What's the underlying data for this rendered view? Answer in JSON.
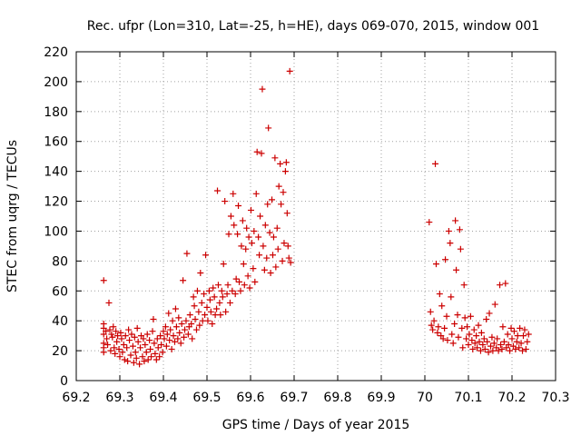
{
  "chart_data": {
    "type": "scatter",
    "title": "Rec. ufpr (Lon=310, Lat=-25, h=HE), days 069-070, 2015, window 001",
    "xlabel": "GPS time / Days of year 2015",
    "ylabel": "STEC from uqrg / TECUs",
    "xlim": [
      69.2,
      70.3
    ],
    "ylim": [
      0,
      220
    ],
    "xticks": [
      "69.2",
      "69.3",
      "69.4",
      "69.5",
      "69.6",
      "69.7",
      "69.8",
      "69.9",
      "70",
      "70.1",
      "70.2",
      "70.3"
    ],
    "yticks": [
      "0",
      "20",
      "40",
      "60",
      "80",
      "100",
      "120",
      "140",
      "160",
      "180",
      "200",
      "220"
    ],
    "grid": true,
    "marker": "plus",
    "color": "#cc0000",
    "series": [
      {
        "points": [
          [
            69.263,
            67
          ],
          [
            69.263,
            38
          ],
          [
            69.263,
            35
          ],
          [
            69.263,
            31
          ],
          [
            69.263,
            25
          ],
          [
            69.263,
            22
          ],
          [
            69.263,
            19
          ],
          [
            69.268,
            33
          ],
          [
            69.27,
            28
          ],
          [
            69.272,
            24
          ],
          [
            69.275,
            52
          ],
          [
            69.277,
            34
          ],
          [
            69.279,
            20
          ],
          [
            69.281,
            31
          ],
          [
            69.283,
            29
          ],
          [
            69.285,
            36
          ],
          [
            69.287,
            22
          ],
          [
            69.289,
            18
          ],
          [
            69.291,
            33
          ],
          [
            69.293,
            26
          ],
          [
            69.295,
            30
          ],
          [
            69.298,
            21
          ],
          [
            69.3,
            16
          ],
          [
            69.302,
            32
          ],
          [
            69.304,
            28
          ],
          [
            69.306,
            19
          ],
          [
            69.309,
            24
          ],
          [
            69.311,
            14
          ],
          [
            69.313,
            30
          ],
          [
            69.316,
            22
          ],
          [
            69.318,
            13
          ],
          [
            69.32,
            34
          ],
          [
            69.322,
            27
          ],
          [
            69.325,
            17
          ],
          [
            69.327,
            31
          ],
          [
            69.33,
            23
          ],
          [
            69.332,
            12
          ],
          [
            69.334,
            29
          ],
          [
            69.336,
            19
          ],
          [
            69.338,
            15
          ],
          [
            69.34,
            35
          ],
          [
            69.342,
            26
          ],
          [
            69.345,
            11
          ],
          [
            69.347,
            22
          ],
          [
            69.349,
            30
          ],
          [
            69.352,
            16
          ],
          [
            69.354,
            28
          ],
          [
            69.356,
            13
          ],
          [
            69.358,
            24
          ],
          [
            69.361,
            19
          ],
          [
            69.363,
            31
          ],
          [
            69.365,
            14
          ],
          [
            69.368,
            27
          ],
          [
            69.37,
            21
          ],
          [
            69.372,
            16
          ],
          [
            69.375,
            33
          ],
          [
            69.377,
            41
          ],
          [
            69.379,
            25
          ],
          [
            69.381,
            18
          ],
          [
            69.384,
            14
          ],
          [
            69.386,
            28
          ],
          [
            69.388,
            22
          ],
          [
            69.391,
            16
          ],
          [
            69.393,
            30
          ],
          [
            69.395,
            24
          ],
          [
            69.398,
            19
          ],
          [
            69.4,
            33
          ],
          [
            69.402,
            28
          ],
          [
            69.405,
            36
          ],
          [
            69.407,
            23
          ],
          [
            69.409,
            31
          ],
          [
            69.412,
            45
          ],
          [
            69.414,
            27
          ],
          [
            69.416,
            34
          ],
          [
            69.419,
            21
          ],
          [
            69.421,
            40
          ],
          [
            69.423,
            30
          ],
          [
            69.426,
            26
          ],
          [
            69.428,
            48
          ],
          [
            69.43,
            36
          ],
          [
            69.433,
            28
          ],
          [
            69.435,
            42
          ],
          [
            69.437,
            32
          ],
          [
            69.44,
            25
          ],
          [
            69.442,
            38
          ],
          [
            69.445,
            67
          ],
          [
            69.447,
            29
          ],
          [
            69.449,
            34
          ],
          [
            69.452,
            40
          ],
          [
            69.454,
            85
          ],
          [
            69.457,
            31
          ],
          [
            69.459,
            36
          ],
          [
            69.461,
            44
          ],
          [
            69.464,
            38
          ],
          [
            69.466,
            28
          ],
          [
            69.469,
            56
          ],
          [
            69.471,
            50
          ],
          [
            69.473,
            41
          ],
          [
            69.476,
            34
          ],
          [
            69.478,
            60
          ],
          [
            69.481,
            46
          ],
          [
            69.483,
            37
          ],
          [
            69.485,
            72
          ],
          [
            69.488,
            52
          ],
          [
            69.49,
            40
          ],
          [
            69.493,
            58
          ],
          [
            69.495,
            44
          ],
          [
            69.497,
            84
          ],
          [
            69.5,
            49
          ],
          [
            69.502,
            40
          ],
          [
            69.505,
            60
          ],
          [
            69.507,
            54
          ],
          [
            69.509,
            46
          ],
          [
            69.512,
            38
          ],
          [
            69.514,
            62
          ],
          [
            69.517,
            56
          ],
          [
            69.519,
            44
          ],
          [
            69.522,
            48
          ],
          [
            69.524,
            127
          ],
          [
            69.526,
            64
          ],
          [
            69.529,
            52
          ],
          [
            69.531,
            44
          ],
          [
            69.534,
            60
          ],
          [
            69.536,
            56
          ],
          [
            69.538,
            78
          ],
          [
            69.541,
            120
          ],
          [
            69.543,
            46
          ],
          [
            69.546,
            58
          ],
          [
            69.548,
            64
          ],
          [
            69.55,
            98
          ],
          [
            69.553,
            52
          ],
          [
            69.555,
            110
          ],
          [
            69.558,
            60
          ],
          [
            69.56,
            125
          ],
          [
            69.562,
            104
          ],
          [
            69.565,
            58
          ],
          [
            69.567,
            68
          ],
          [
            69.57,
            98
          ],
          [
            69.572,
            117
          ],
          [
            69.574,
            66
          ],
          [
            69.577,
            60
          ],
          [
            69.579,
            90
          ],
          [
            69.582,
            107
          ],
          [
            69.584,
            78
          ],
          [
            69.586,
            64
          ],
          [
            69.589,
            88
          ],
          [
            69.591,
            102
          ],
          [
            69.594,
            70
          ],
          [
            69.596,
            96
          ],
          [
            69.598,
            62
          ],
          [
            69.601,
            114
          ],
          [
            69.603,
            92
          ],
          [
            69.606,
            75
          ],
          [
            69.608,
            100
          ],
          [
            69.61,
            66
          ],
          [
            69.613,
            125
          ],
          [
            69.615,
            153
          ],
          [
            69.618,
            96
          ],
          [
            69.62,
            84
          ],
          [
            69.622,
            110
          ],
          [
            69.625,
            152
          ],
          [
            69.627,
            195
          ],
          [
            69.629,
            90
          ],
          [
            69.632,
            74
          ],
          [
            69.634,
            104
          ],
          [
            69.637,
            82
          ],
          [
            69.639,
            118
          ],
          [
            69.641,
            169
          ],
          [
            69.644,
            99
          ],
          [
            69.646,
            72
          ],
          [
            69.649,
            121
          ],
          [
            69.651,
            84
          ],
          [
            69.653,
            96
          ],
          [
            69.656,
            149
          ],
          [
            69.658,
            76
          ],
          [
            69.661,
            102
          ],
          [
            69.663,
            88
          ],
          [
            69.665,
            130
          ],
          [
            69.668,
            145
          ],
          [
            69.67,
            118
          ],
          [
            69.673,
            80
          ],
          [
            69.675,
            126
          ],
          [
            69.677,
            92
          ],
          [
            69.68,
            140
          ],
          [
            69.682,
            146
          ],
          [
            69.684,
            112
          ],
          [
            69.686,
            90
          ],
          [
            69.688,
            82
          ],
          [
            69.69,
            207
          ],
          [
            69.692,
            79
          ]
        ]
      },
      {
        "points": [
          [
            70.01,
            106
          ],
          [
            70.013,
            46
          ],
          [
            70.015,
            37
          ],
          [
            70.018,
            34
          ],
          [
            70.021,
            40
          ],
          [
            70.024,
            145
          ],
          [
            70.026,
            78
          ],
          [
            70.029,
            32
          ],
          [
            70.031,
            36
          ],
          [
            70.034,
            58
          ],
          [
            70.037,
            30
          ],
          [
            70.039,
            50
          ],
          [
            70.042,
            28
          ],
          [
            70.045,
            35
          ],
          [
            70.047,
            81
          ],
          [
            70.05,
            43
          ],
          [
            70.052,
            27
          ],
          [
            70.055,
            100
          ],
          [
            70.058,
            92
          ],
          [
            70.06,
            56
          ],
          [
            70.062,
            31
          ],
          [
            70.065,
            25
          ],
          [
            70.068,
            38
          ],
          [
            70.07,
            107
          ],
          [
            70.072,
            74
          ],
          [
            70.075,
            44
          ],
          [
            70.077,
            29
          ],
          [
            70.08,
            101
          ],
          [
            70.082,
            88
          ],
          [
            70.085,
            35
          ],
          [
            70.087,
            22
          ],
          [
            70.09,
            64
          ],
          [
            70.092,
            42
          ],
          [
            70.095,
            28
          ],
          [
            70.097,
            36
          ],
          [
            70.1,
            24
          ],
          [
            70.102,
            31
          ],
          [
            70.105,
            43
          ],
          [
            70.108,
            27
          ],
          [
            70.11,
            21
          ],
          [
            70.113,
            34
          ],
          [
            70.115,
            25
          ],
          [
            70.118,
            30
          ],
          [
            70.12,
            22
          ],
          [
            70.123,
            37
          ],
          [
            70.125,
            26
          ],
          [
            70.128,
            20
          ],
          [
            70.13,
            32
          ],
          [
            70.133,
            24
          ],
          [
            70.136,
            28
          ],
          [
            70.138,
            21
          ],
          [
            70.141,
            41
          ],
          [
            70.143,
            26
          ],
          [
            70.146,
            19
          ],
          [
            70.148,
            45
          ],
          [
            70.151,
            23
          ],
          [
            70.154,
            29
          ],
          [
            70.156,
            20
          ],
          [
            70.159,
            25
          ],
          [
            70.161,
            51
          ],
          [
            70.164,
            22
          ],
          [
            70.166,
            28
          ],
          [
            70.169,
            20
          ],
          [
            70.172,
            64
          ],
          [
            70.174,
            24
          ],
          [
            70.177,
            21
          ],
          [
            70.179,
            36
          ],
          [
            70.182,
            26
          ],
          [
            70.185,
            65
          ],
          [
            70.187,
            22
          ],
          [
            70.19,
            31
          ],
          [
            70.192,
            24
          ],
          [
            70.195,
            20
          ],
          [
            70.198,
            35
          ],
          [
            70.2,
            28
          ],
          [
            70.203,
            23
          ],
          [
            70.205,
            33
          ],
          [
            70.208,
            21
          ],
          [
            70.211,
            26
          ],
          [
            70.213,
            30
          ],
          [
            70.216,
            22
          ],
          [
            70.218,
            35
          ],
          [
            70.221,
            25
          ],
          [
            70.224,
            20
          ],
          [
            70.226,
            30
          ],
          [
            70.229,
            34
          ],
          [
            70.232,
            21
          ],
          [
            70.235,
            26
          ],
          [
            70.238,
            31
          ]
        ]
      }
    ]
  }
}
